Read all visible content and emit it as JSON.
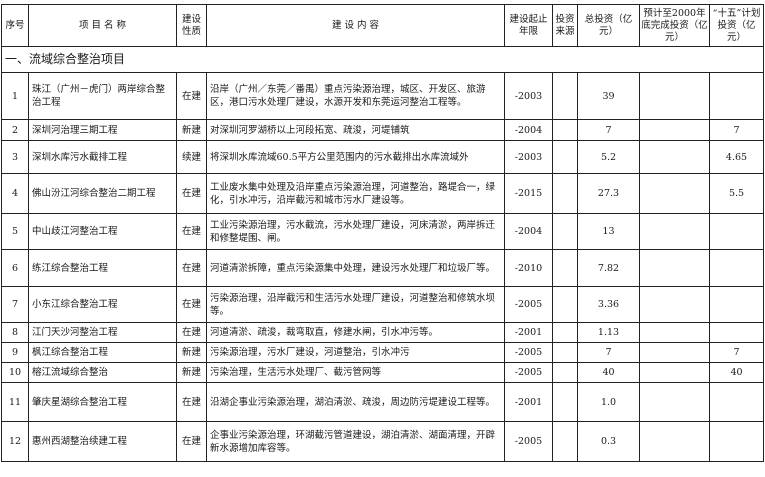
{
  "header": {
    "no": "序号",
    "name": "项 目 名 称",
    "nature": "建设性质",
    "content": "建 设 内 容",
    "period": "建设起止年限",
    "source": "投资来源",
    "total": "总投资（亿元）",
    "by2000": "预计至2000年底完成投资（亿元）",
    "plan": "“十五”计划投资（亿元）"
  },
  "section": "一、流域综合整治项目",
  "rows": [
    {
      "no": "1",
      "name": "珠江（广州－虎门）两岸综合整治工程",
      "nature": "在建",
      "content": "沿岸（广州／东莞／番禺）重点污染源治理，城区、开发区、旅游区，港口污水处理厂建设，水源开发和东莞运河整治工程等。",
      "period": "-2003",
      "source": "",
      "total": "39",
      "by2000": "",
      "plan": ""
    },
    {
      "no": "2",
      "name": "深圳河治理三期工程",
      "nature": "新建",
      "content": "对深圳河罗湖桥以上河段拓宽、疏浚，河堤铺筑",
      "period": "-2004",
      "source": "",
      "total": "7",
      "by2000": "",
      "plan": "7"
    },
    {
      "no": "3",
      "name": "深圳水库污水截排工程",
      "nature": "续建",
      "content": "将深圳水库流域60.5平方公里范围内的污水截排出水库流域外",
      "period": "-2003",
      "source": "",
      "total": "5.2",
      "by2000": "",
      "plan": "4.65"
    },
    {
      "no": "4",
      "name": "佛山汾江河综合整治二期工程",
      "nature": "在建",
      "content": "工业废水集中处理及沿岸重点污染源治理，河道整治，路堤合一，绿化，引水冲污，沿岸截污和城市污水厂建设等。",
      "period": "-2015",
      "source": "",
      "total": "27.3",
      "by2000": "",
      "plan": "5.5"
    },
    {
      "no": "5",
      "name": "中山歧江河整治工程",
      "nature": "在建",
      "content": "工业污染源治理，污水截流，污水处理厂建设，河床清淤，两岸拆迁和修整堤围、闸。",
      "period": "-2004",
      "source": "",
      "total": "13",
      "by2000": "",
      "plan": ""
    },
    {
      "no": "6",
      "name": "练江综合整治工程",
      "nature": "在建",
      "content": "河道清淤拆障，重点污染源集中处理，建设污水处理厂和垃圾厂等。",
      "period": "-2010",
      "source": "",
      "total": "7.82",
      "by2000": "",
      "plan": ""
    },
    {
      "no": "7",
      "name": "小东江综合整治工程",
      "nature": "在建",
      "content": "污染源治理，沿岸截污和生活污水处理厂建设，河道整治和修筑水坝等。",
      "period": "-2005",
      "source": "",
      "total": "3.36",
      "by2000": "",
      "plan": ""
    },
    {
      "no": "8",
      "name": "江门天沙河整治工程",
      "nature": "在建",
      "content": "河道清淤、疏浚，裁弯取直，修建水闸，引水冲污等。",
      "period": "-2001",
      "source": "",
      "total": "1.13",
      "by2000": "",
      "plan": ""
    },
    {
      "no": "9",
      "name": "枫江综合整治工程",
      "nature": "新建",
      "content": "污染源治理，污水厂建设，河道整治，引水冲污",
      "period": "-2005",
      "source": "",
      "total": "7",
      "by2000": "",
      "plan": "7"
    },
    {
      "no": "10",
      "name": "榕江流域综合整治",
      "nature": "新建",
      "content": "污染治理，生活污水处理厂、截污管网等",
      "period": "-2005",
      "source": "",
      "total": "40",
      "by2000": "",
      "plan": "40"
    },
    {
      "no": "11",
      "name": "肇庆星湖综合整治工程",
      "nature": "在建",
      "content": "沿湖企事业污染源治理，湖泊清淤、疏浚，周边防污堤建设工程等。",
      "period": "-2001",
      "source": "",
      "total": "1.0",
      "by2000": "",
      "plan": ""
    },
    {
      "no": "12",
      "name": "惠州西湖整治续建工程",
      "nature": "在建",
      "content": "企事业污染源治理，环湖截污管道建设，湖泊清淤、湖面清理，开辟新水源增加库容等。",
      "period": "-2005",
      "source": "",
      "total": "0.3",
      "by2000": "",
      "plan": ""
    }
  ]
}
